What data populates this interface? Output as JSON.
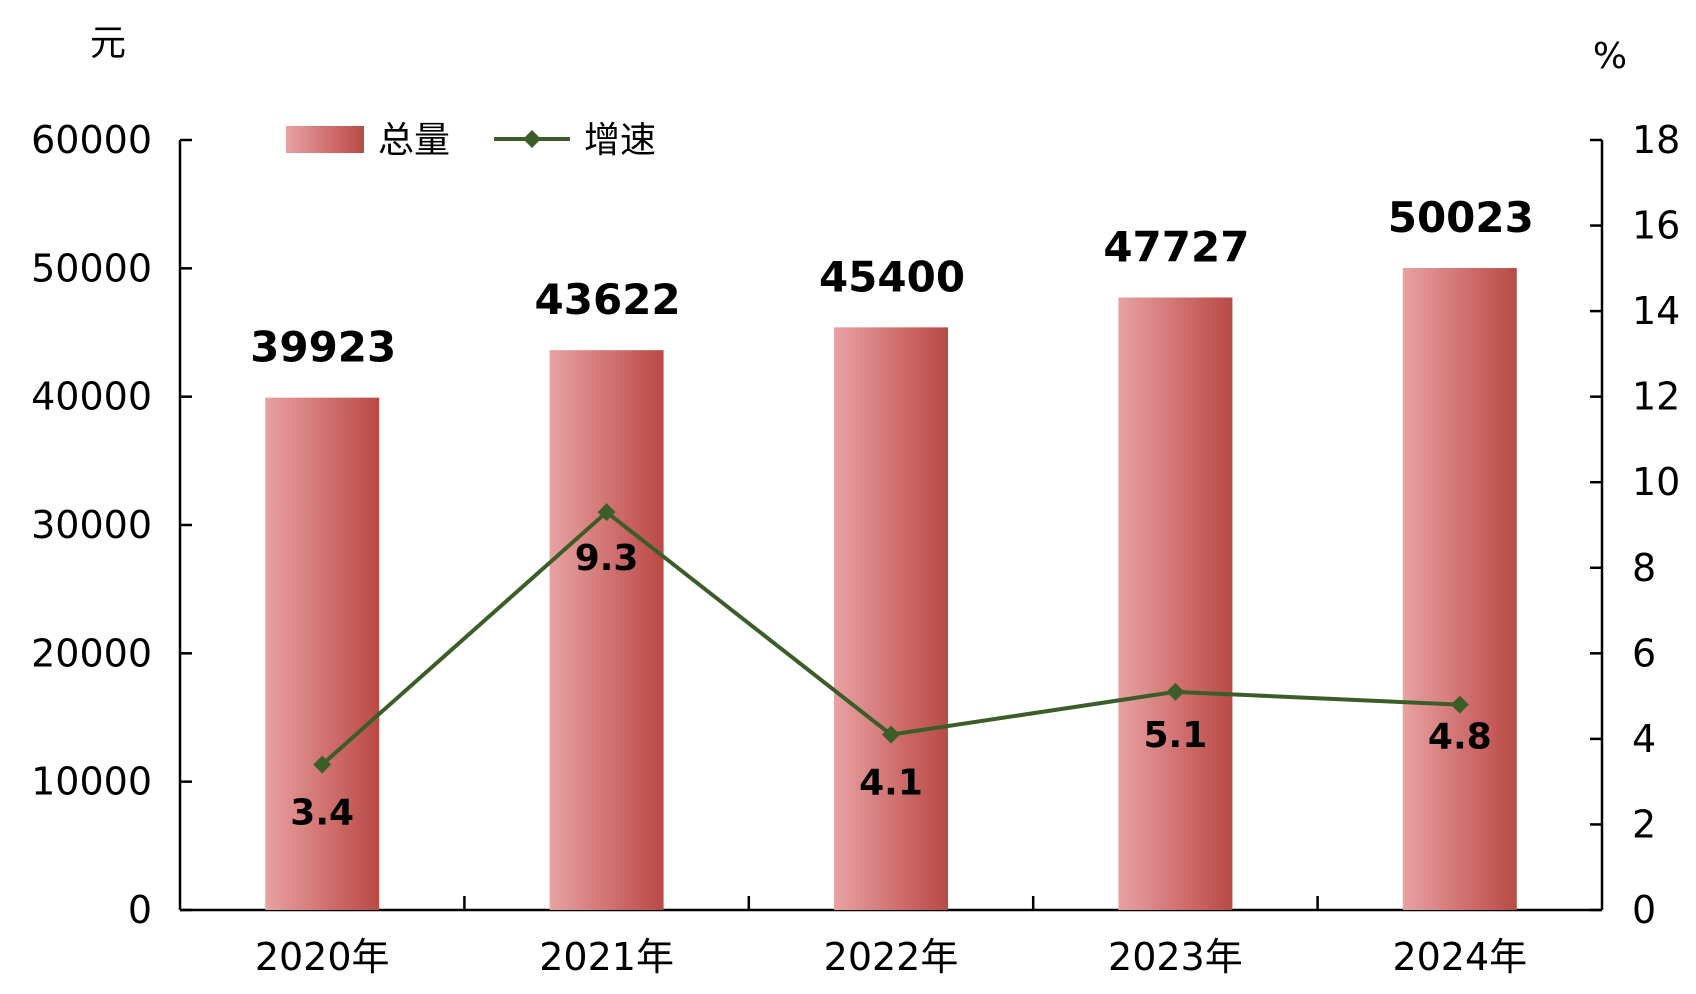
{
  "chart_data": {
    "type": "bar",
    "categories": [
      "2020年",
      "2021年",
      "2022年",
      "2023年",
      "2024年"
    ],
    "series": [
      {
        "name": "总量",
        "type": "bar",
        "axis": "left",
        "values": [
          39923,
          43622,
          45400,
          47727,
          50023
        ]
      },
      {
        "name": "增速",
        "type": "line",
        "axis": "right",
        "values": [
          3.4,
          9.3,
          4.1,
          5.1,
          4.8
        ]
      }
    ],
    "left_axis": {
      "unit": "元",
      "ylim": [
        0,
        60000
      ],
      "ticks": [
        0,
        10000,
        20000,
        30000,
        40000,
        50000,
        60000
      ]
    },
    "right_axis": {
      "unit": "%",
      "ylim": [
        0,
        18
      ],
      "ticks": [
        0,
        2,
        4,
        6,
        8,
        10,
        12,
        14,
        16,
        18
      ]
    },
    "bar_labels": [
      "39923",
      "43622",
      "45400",
      "47727",
      "50023"
    ],
    "line_labels": [
      "3.4",
      "9.3",
      "4.1",
      "5.1",
      "4.8"
    ],
    "legend": {
      "position": "top-left",
      "items": [
        "总量",
        "增速"
      ]
    },
    "grid": false,
    "colors": {
      "bar_light": "#e8a2a2",
      "bar_mid": "#d06f6f",
      "bar_dark": "#b94a45",
      "line": "#3b5e29"
    }
  }
}
